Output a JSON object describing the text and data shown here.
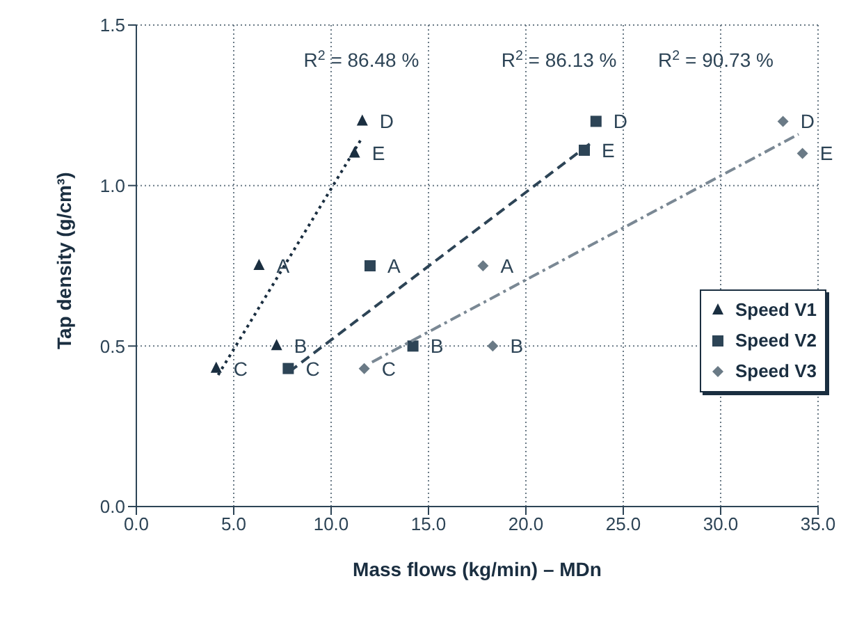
{
  "chart_data": {
    "type": "scatter",
    "xlabel": "Mass flows (kg/min) – MDn",
    "ylabel": "Tap density (g/cm³)",
    "xlim": [
      0,
      35
    ],
    "ylim": [
      0,
      1.5
    ],
    "xticks": [
      {
        "value": 0,
        "label": "0.0"
      },
      {
        "value": 5,
        "label": "5.0"
      },
      {
        "value": 10,
        "label": "10.0"
      },
      {
        "value": 15,
        "label": "15.0"
      },
      {
        "value": 20,
        "label": "20.0"
      },
      {
        "value": 25,
        "label": "25.0"
      },
      {
        "value": 30,
        "label": "30.0"
      },
      {
        "value": 35,
        "label": "35.0"
      }
    ],
    "yticks": [
      {
        "value": 0,
        "label": "0.0"
      },
      {
        "value": 0.5,
        "label": "0.5"
      },
      {
        "value": 1,
        "label": "1.0"
      },
      {
        "value": 1.5,
        "label": "1.5"
      }
    ],
    "grid": true,
    "legend": "right",
    "annotations": [
      "R$^{2}$ = 86.48 %",
      "R$^{2}$ = 86.13 %",
      "R$^{2}$ = 90.73 %"
    ],
    "series": [
      {
        "name": "Speed V1",
        "marker": "triangle",
        "color": "#1a2e40",
        "x": [
          4.1,
          6.3,
          7.2,
          11.2,
          11.6
        ],
        "values": [
          0.43,
          0.75,
          0.5,
          1.1,
          1.2
        ],
        "value_labels": [
          "C",
          "A",
          "B",
          "E",
          "D"
        ]
      },
      {
        "name": "Speed V2",
        "marker": "square",
        "color": "#2d4456",
        "x": [
          7.8,
          12.0,
          14.2,
          23.0,
          23.6
        ],
        "values": [
          0.43,
          0.75,
          0.5,
          1.11,
          1.2
        ],
        "value_labels": [
          "C",
          "A",
          "B",
          "E",
          "D"
        ]
      },
      {
        "name": "Speed V3",
        "marker": "diamond",
        "color": "#6a7a86",
        "x": [
          11.7,
          17.8,
          18.3,
          33.2,
          34.2
        ],
        "values": [
          0.43,
          0.75,
          0.5,
          1.2,
          1.1
        ],
        "value_labels": [
          "C",
          "A",
          "B",
          "D",
          "E"
        ]
      },
      {
        "type": "line",
        "line_style": "dotted",
        "color": "#1a2e40",
        "x": [
          4.2,
          11.6
        ],
        "values": [
          0.41,
          1.15
        ]
      },
      {
        "type": "line",
        "line_style": "dashed",
        "color": "#2d4456",
        "x": [
          7.85,
          23.5
        ],
        "values": [
          0.42,
          1.14
        ]
      },
      {
        "type": "line",
        "line_style": "dashdot",
        "color": "#7a8894",
        "x": [
          12.1,
          34.0
        ],
        "values": [
          0.45,
          1.16
        ]
      }
    ]
  }
}
